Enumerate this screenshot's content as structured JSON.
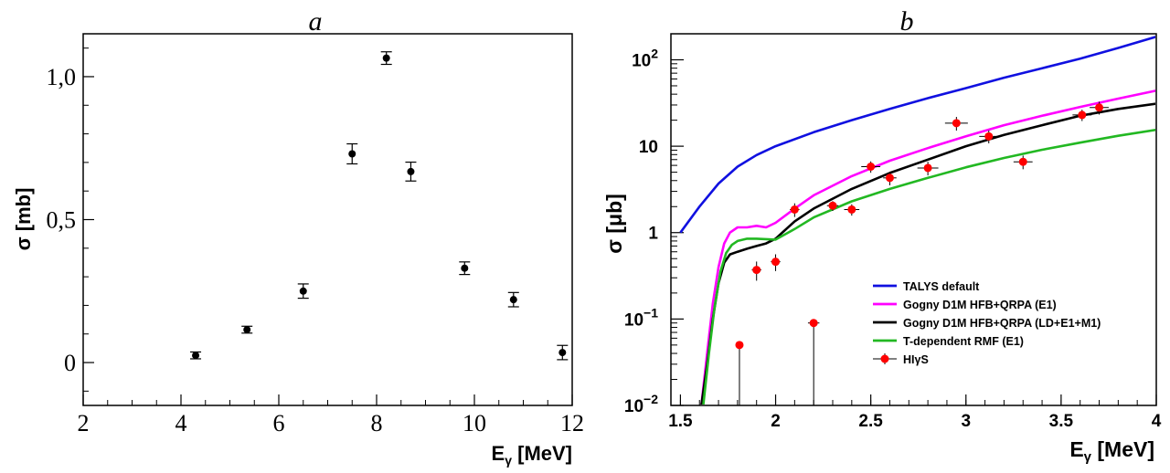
{
  "chart_data": [
    {
      "panel_label": "a",
      "type": "scatter",
      "xlabel": "Eγ [MeV]",
      "xlabel_main": "E",
      "xlabel_sub": "γ",
      "xlabel_rest": " [MeV]",
      "ylabel": "σ [mb]",
      "xlim": [
        2,
        12
      ],
      "ylim": [
        -0.15,
        1.15
      ],
      "x_ticks": [
        2,
        4,
        6,
        8,
        10,
        12
      ],
      "x_tick_labels": [
        "2",
        "4",
        "6",
        "8",
        "10",
        "12"
      ],
      "y_ticks": [
        0,
        0.5,
        1.0
      ],
      "y_tick_labels": [
        "0",
        "0,5",
        "1,0"
      ],
      "grid": false,
      "series": [
        {
          "x": [
            4.3,
            5.35,
            6.5,
            7.5,
            8.2,
            8.7,
            9.8,
            10.8,
            11.8
          ],
          "y": [
            0.025,
            0.115,
            0.25,
            0.73,
            1.065,
            0.668,
            0.33,
            0.22,
            0.035
          ],
          "yerr": [
            0.012,
            0.012,
            0.025,
            0.035,
            0.022,
            0.033,
            0.022,
            0.025,
            0.025
          ],
          "marker": "filled-circle",
          "color": "#000000"
        }
      ]
    },
    {
      "panel_label": "b",
      "type": "line",
      "xlabel": "Eγ [MeV]",
      "xlabel_main": "E",
      "xlabel_sub": "γ",
      "xlabel_rest": " [MeV]",
      "ylabel": "σ [μb]",
      "xlim": [
        1.45,
        4.0
      ],
      "ylim": [
        0.01,
        200
      ],
      "y_scale": "log",
      "x_ticks": [
        1.5,
        2,
        2.5,
        3,
        3.5,
        4
      ],
      "x_tick_labels": [
        "1.5",
        "2",
        "2.5",
        "3",
        "3.5",
        "4"
      ],
      "y_ticks": [
        0.01,
        0.1,
        1,
        10,
        100
      ],
      "y_tick_labels": [
        {
          "base": "10",
          "exp": "−2"
        },
        {
          "base": "10",
          "exp": "−1"
        },
        {
          "base": "1",
          "exp": ""
        },
        {
          "base": "10",
          "exp": ""
        },
        {
          "base": "10",
          "exp": "2"
        }
      ],
      "grid": false,
      "legend_position": "bottom-right",
      "series": [
        {
          "name": "TALYS default",
          "color": "#1010e0",
          "x": [
            1.5,
            1.6,
            1.7,
            1.8,
            1.9,
            2.0,
            2.2,
            2.4,
            2.6,
            2.8,
            3.0,
            3.2,
            3.4,
            3.6,
            3.8,
            4.0
          ],
          "y": [
            1.0,
            2.0,
            3.7,
            5.8,
            7.9,
            10.0,
            14.5,
            20.0,
            27.0,
            36.0,
            47.0,
            62.0,
            80.0,
            103.0,
            137.0,
            185.0
          ]
        },
        {
          "name": "Gogny D1M HFB+QRPA (E1)",
          "color": "#ff00ff",
          "x": [
            1.61,
            1.64,
            1.67,
            1.7,
            1.73,
            1.76,
            1.8,
            1.85,
            1.9,
            1.95,
            2.0,
            2.1,
            2.2,
            2.4,
            2.6,
            2.8,
            3.0,
            3.2,
            3.4,
            3.6,
            3.8,
            4.0
          ],
          "y": [
            0.01,
            0.04,
            0.15,
            0.4,
            0.75,
            1.0,
            1.15,
            1.15,
            1.2,
            1.15,
            1.3,
            1.9,
            2.7,
            4.5,
            6.8,
            9.5,
            13.0,
            17.5,
            22.5,
            28.5,
            35.5,
            44.0
          ]
        },
        {
          "name": "Gogny D1M HFB+QRPA (LD+E1+M1)",
          "color": "#000000",
          "x": [
            1.61,
            1.64,
            1.67,
            1.7,
            1.73,
            1.76,
            1.8,
            1.85,
            1.9,
            1.95,
            2.0,
            2.1,
            2.2,
            2.4,
            2.6,
            2.8,
            3.0,
            3.2,
            3.4,
            3.6,
            3.8,
            4.0
          ],
          "y": [
            0.01,
            0.03,
            0.1,
            0.26,
            0.45,
            0.56,
            0.6,
            0.65,
            0.7,
            0.75,
            0.85,
            1.35,
            1.9,
            3.2,
            4.9,
            7.0,
            10.0,
            13.5,
            17.5,
            22.5,
            27.0,
            31.0
          ]
        },
        {
          "name": "T-dependent RMF (E1)",
          "color": "#22b822",
          "x": [
            1.62,
            1.65,
            1.68,
            1.71,
            1.74,
            1.77,
            1.8,
            1.85,
            1.9,
            1.95,
            2.0,
            2.1,
            2.2,
            2.4,
            2.6,
            2.8,
            3.0,
            3.2,
            3.4,
            3.6,
            3.8,
            4.0
          ],
          "y": [
            0.01,
            0.04,
            0.14,
            0.35,
            0.58,
            0.72,
            0.8,
            0.85,
            0.85,
            0.84,
            0.83,
            1.1,
            1.5,
            2.3,
            3.2,
            4.3,
            5.7,
            7.3,
            9.1,
            11.0,
            13.2,
            15.5
          ]
        },
        {
          "name": "HIγS",
          "marker": "circle",
          "color": "#ff0000",
          "x": [
            1.81,
            1.9,
            2.0,
            2.1,
            2.2,
            2.3,
            2.4,
            2.5,
            2.6,
            2.8,
            2.95,
            3.12,
            3.3,
            3.61,
            3.7
          ],
          "y": [
            0.05,
            0.37,
            0.46,
            1.85,
            0.09,
            2.05,
            1.85,
            5.8,
            4.3,
            5.6,
            18.5,
            13.0,
            6.6,
            23.0,
            28.0
          ],
          "xerr": [
            0.02,
            0.025,
            0.025,
            0.025,
            0.03,
            0.03,
            0.04,
            0.05,
            0.035,
            0.055,
            0.06,
            0.05,
            0.05,
            0.05,
            0.05
          ],
          "yerr_rel": [
            0.0,
            0.25,
            0.22,
            0.18,
            0.0,
            0.13,
            0.15,
            0.15,
            0.18,
            0.18,
            0.18,
            0.17,
            0.18,
            0.15,
            0.17
          ],
          "upper_limit_drop": [
            true,
            false,
            false,
            false,
            true,
            false,
            false,
            false,
            false,
            false,
            false,
            false,
            false,
            false,
            false
          ]
        }
      ]
    }
  ]
}
